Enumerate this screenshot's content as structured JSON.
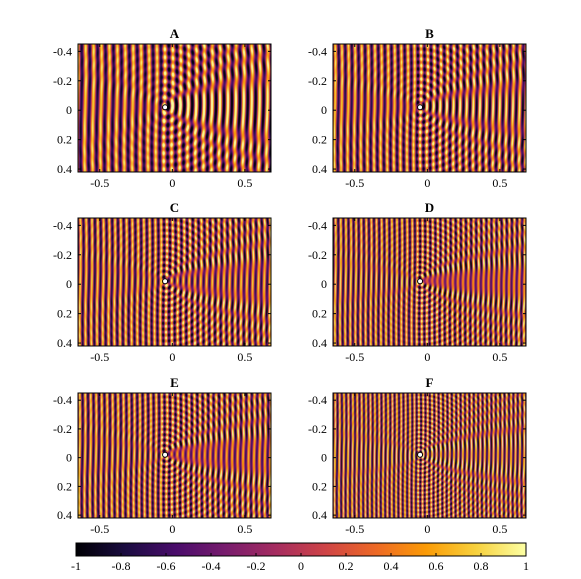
{
  "chart_data": {
    "type": "heatmap",
    "colormap": {
      "name": "inferno",
      "stops": [
        "#000004",
        "#1b0c41",
        "#4a0c6b",
        "#781c6d",
        "#a52c60",
        "#cf4446",
        "#ed6925",
        "#fb9b06",
        "#f7d13d",
        "#fcffa4"
      ],
      "range": [
        -1,
        1
      ],
      "tick_labels": [
        "-1",
        "-0.8",
        "-0.6",
        "-0.4",
        "-0.2",
        "0",
        "0.2",
        "0.4",
        "0.6",
        "0.8",
        "1"
      ]
    },
    "x_axis": {
      "range": [
        -0.65,
        0.68
      ],
      "ticks": [
        -0.5,
        0,
        0.5
      ],
      "tick_labels": [
        "-0.5",
        "0",
        "0.5"
      ]
    },
    "y_axis": {
      "range": [
        -0.45,
        0.42
      ],
      "reversed": true,
      "ticks": [
        -0.4,
        -0.2,
        0,
        0.2,
        0.4
      ],
      "tick_labels": [
        "-0.4",
        "-0.2",
        "0",
        "0.2",
        "0.4"
      ]
    },
    "panels": [
      {
        "title": "A",
        "wavenumber": 40,
        "source": [
          -0.05,
          -0.02
        ]
      },
      {
        "title": "B",
        "wavenumber": 48,
        "source": [
          -0.05,
          -0.02
        ]
      },
      {
        "title": "C",
        "wavenumber": 55,
        "source": [
          -0.05,
          -0.02
        ]
      },
      {
        "title": "D",
        "wavenumber": 62,
        "source": [
          -0.05,
          -0.02
        ]
      },
      {
        "title": "E",
        "wavenumber": 58,
        "source": [
          -0.05,
          -0.02
        ]
      },
      {
        "title": "F",
        "wavenumber": 72,
        "source": [
          -0.05,
          -0.02
        ]
      }
    ]
  }
}
